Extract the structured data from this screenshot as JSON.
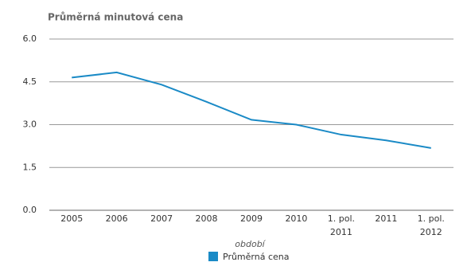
{
  "chart_data": {
    "type": "line",
    "title": "Průměrná minutová cena",
    "x_label": "období",
    "categories": [
      "2005",
      "2006",
      "2007",
      "2008",
      "2009",
      "2010",
      "1. pol. 2011",
      "2011",
      "1. pol. 2012"
    ],
    "series": [
      {
        "name": "Průměrná cena",
        "color": "#1a8ac6",
        "values": [
          4.65,
          4.83,
          4.4,
          3.8,
          3.17,
          3.0,
          2.65,
          2.45,
          2.18
        ]
      }
    ],
    "ylim": [
      0,
      6
    ],
    "yticks": [
      {
        "value": 0,
        "label": "0.0"
      },
      {
        "value": 1.5,
        "label": "1.5"
      },
      {
        "value": 3,
        "label": "3.0"
      },
      {
        "value": 4.5,
        "label": "4.5"
      },
      {
        "value": 6,
        "label": "6.0"
      }
    ],
    "grid": true,
    "legend": "bottom"
  }
}
